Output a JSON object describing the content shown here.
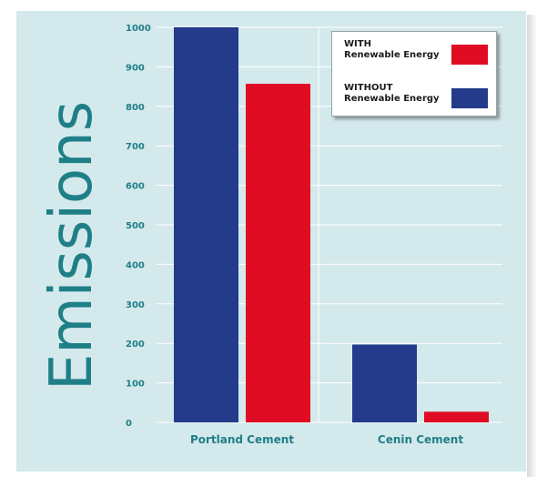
{
  "colors": {
    "panel_bg": "#d4e9ec",
    "text_teal": "#1f7f86",
    "with_red": "#e00c24",
    "without_blue": "#243a8a",
    "grid": "#ffffff"
  },
  "chart_data": {
    "type": "bar",
    "ylabel": "Emissions",
    "xlabel": "",
    "categories": [
      "Portland Cement",
      "Cenin Cement"
    ],
    "series": [
      {
        "name": "WITHOUT Renewable Energy",
        "color": "#243a8a",
        "values": [
          1000,
          197
        ]
      },
      {
        "name": "WITH Renewable Energy",
        "color": "#e00c24",
        "values": [
          857,
          27
        ]
      }
    ],
    "yticks": [
      0,
      100,
      200,
      300,
      400,
      500,
      600,
      700,
      800,
      900,
      1000
    ],
    "ylim": [
      0,
      1000
    ],
    "grid": true,
    "legend_position": "top-right"
  },
  "legend": {
    "items": [
      {
        "line1": "WITH",
        "line2": "Renewable Energy",
        "color": "#e00c24"
      },
      {
        "line1": "WITHOUT",
        "line2": "Renewable Energy",
        "color": "#243a8a"
      }
    ]
  }
}
